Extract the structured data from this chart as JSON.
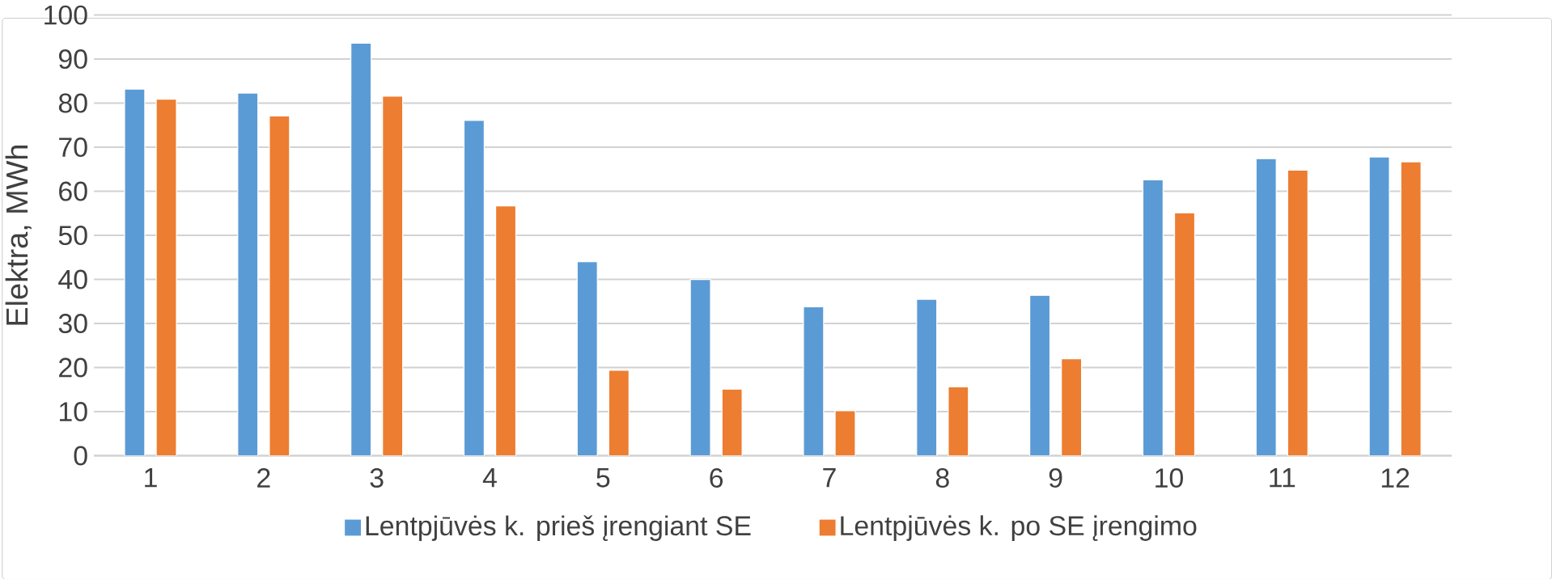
{
  "chart_data": {
    "type": "bar",
    "ylabel": "Elektra, MWh",
    "categories": [
      "1",
      "2",
      "3",
      "4",
      "5",
      "6",
      "7",
      "8",
      "9",
      "10",
      "11",
      "12"
    ],
    "series": [
      {
        "name": "Lentpjūvės k. prieš įrengiant SE",
        "color": "#5b9bd5",
        "values": [
          83.2,
          82.3,
          93.6,
          76.1,
          44,
          40,
          33.8,
          35.5,
          36.4,
          62.6,
          67.4,
          67.8
        ]
      },
      {
        "name": "Lentpjūvės k. po SE įrengimo",
        "color": "#ed7d31",
        "values": [
          80.9,
          77.1,
          81.6,
          56.7,
          19.4,
          15.1,
          10.2,
          15.6,
          22,
          55.1,
          64.8,
          66.7
        ]
      }
    ],
    "ylim": [
      0,
      100
    ],
    "yticks": [
      0,
      10,
      20,
      30,
      40,
      50,
      60,
      70,
      80,
      90,
      100
    ],
    "grid": "y",
    "legend": "bottom"
  }
}
